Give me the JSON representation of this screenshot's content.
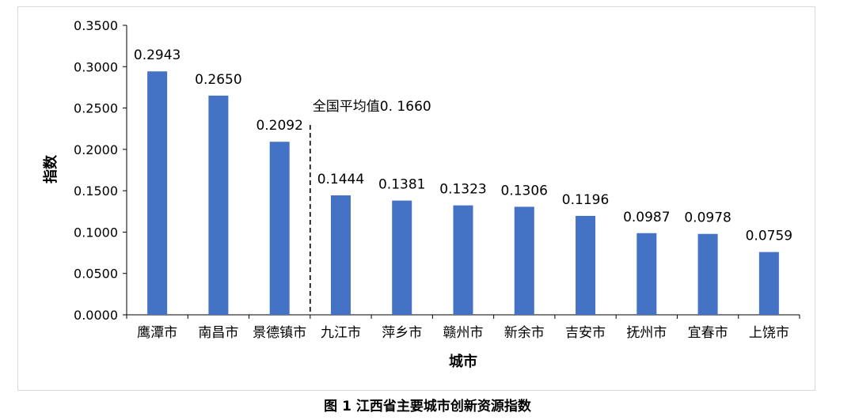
{
  "chart_data": {
    "type": "bar",
    "categories": [
      "鹰潭市",
      "南昌市",
      "景德镇市",
      "九江市",
      "萍乡市",
      "赣州市",
      "新余市",
      "吉安市",
      "抚州市",
      "宜春市",
      "上饶市"
    ],
    "values": [
      0.2943,
      0.265,
      0.2092,
      0.1444,
      0.1381,
      0.1323,
      0.1306,
      0.1196,
      0.0987,
      0.0978,
      0.0759
    ],
    "value_labels": [
      "0.2943",
      "0.2650",
      "0.2092",
      "0.1444",
      "0.1381",
      "0.1323",
      "0.1306",
      "0.1196",
      "0.0987",
      "0.0978",
      "0.0759"
    ],
    "xlabel": "城市",
    "ylabel": "指数",
    "ylim": [
      0,
      0.35
    ],
    "yticks": [
      "0.0000",
      "0.0500",
      "0.1000",
      "0.1500",
      "0.2000",
      "0.2500",
      "0.3000",
      "0.3500"
    ],
    "grid": false,
    "legend": "none",
    "bar_color": "#4472c4",
    "annotation": {
      "text": "全国平均值0. 1660",
      "between_categories": [
        "景德镇市",
        "九江市"
      ],
      "style": "dashed vertical line"
    }
  },
  "caption": "图 1 江西省主要城市创新资源指数"
}
